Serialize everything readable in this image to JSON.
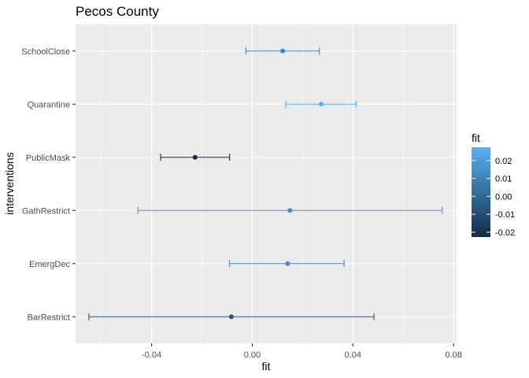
{
  "chart_data": {
    "type": "scatter",
    "title": "Pecos County",
    "xlabel": "fit",
    "ylabel": "interventions",
    "xlim": [
      -0.0702,
      0.0812
    ],
    "x_ticks": [
      -0.04,
      0.0,
      0.04,
      0.08
    ],
    "x_tick_labels": [
      "-0.04",
      "0.00",
      "0.04",
      "0.08"
    ],
    "categories": [
      "SchoolClose",
      "Quarantine",
      "PublicMask",
      "GathRestrict",
      "EmergDec",
      "BarRestrict"
    ],
    "fit": [
      0.0121,
      0.0274,
      -0.0227,
      0.015,
      0.0141,
      -0.0083
    ],
    "lower": [
      -0.0025,
      0.0133,
      -0.0364,
      -0.0454,
      -0.009,
      -0.0649
    ],
    "upper": [
      0.0267,
      0.0413,
      -0.009,
      0.0755,
      0.0365,
      0.0484
    ],
    "grid": true,
    "legend": {
      "title": "fit",
      "position": "right",
      "range": [
        -0.0227,
        0.0274
      ],
      "ticks": [
        0.02,
        0.01,
        0.0,
        -0.01,
        -0.02
      ],
      "tick_labels": [
        "0.02",
        "0.01",
        "0.00",
        "-0.01",
        "-0.02"
      ]
    },
    "colors": {
      "low": "#132B43",
      "high": "#56B1F7",
      "panel": "#EBEBEB",
      "grid": "#FFFFFF"
    }
  }
}
